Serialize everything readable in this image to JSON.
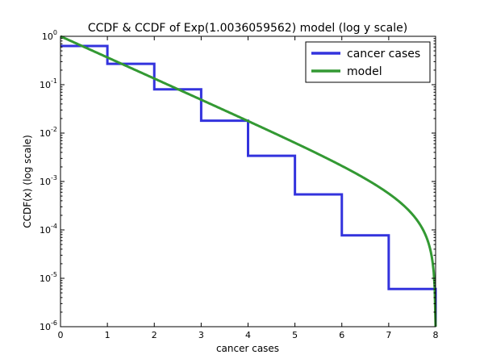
{
  "chart_data": {
    "type": "line",
    "title": "CCDF & CCDF of Exp(1.0036059562) model (log y scale)",
    "xlabel": "cancer cases",
    "ylabel": "CCDF(x) (log scale)",
    "xlim": [
      0,
      8
    ],
    "ylim_log10": [
      -6,
      0
    ],
    "yscale": "log",
    "x_ticks": [
      "0",
      "1",
      "2",
      "3",
      "4",
      "5",
      "6",
      "7",
      "8"
    ],
    "y_ticks": [
      {
        "base": "10",
        "exp": "0"
      },
      {
        "base": "10",
        "exp": "-1"
      },
      {
        "base": "10",
        "exp": "-2"
      },
      {
        "base": "10",
        "exp": "-3"
      },
      {
        "base": "10",
        "exp": "-4"
      },
      {
        "base": "10",
        "exp": "-5"
      },
      {
        "base": "10",
        "exp": "-6"
      }
    ],
    "legend_position": "top-right",
    "grid": false,
    "series": [
      {
        "name": "cancer cases",
        "color": "#3333dd",
        "style": "step",
        "x": [
          0,
          1,
          2,
          3,
          4,
          5,
          6,
          7,
          8
        ],
        "y": [
          0.63,
          0.27,
          0.08,
          0.018,
          0.0034,
          0.00054,
          7.7e-05,
          6e-06,
          6e-06
        ]
      },
      {
        "name": "model",
        "color": "#339933",
        "style": "curve",
        "rate": 1.0036059562,
        "x_max": 8
      }
    ]
  }
}
